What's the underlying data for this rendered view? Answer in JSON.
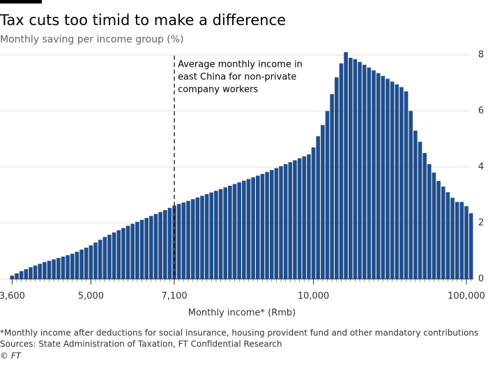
{
  "chart_data": {
    "type": "bar",
    "title": "Tax cuts too timid to make a difference",
    "subtitle": "Monthly saving per income group (%)",
    "x_label": "Monthly income* (Rmb)",
    "annotation": [
      "Average monthly income in",
      "east China for non-private",
      "company workers"
    ],
    "footnote": "*Monthly income after deductions for social insurance, housing provident fund and other mandatory contributions",
    "source": "Sources: State Administration of Taxation, FT Confidential Research",
    "credit": "© FT",
    "color": "#1f4e8c",
    "grid": true,
    "ylim": [
      0,
      8.2
    ],
    "yticks": [
      0,
      2,
      4,
      6,
      8
    ],
    "categories": [
      "3,600",
      null,
      null,
      null,
      null,
      null,
      null,
      null,
      null,
      null,
      null,
      null,
      null,
      null,
      null,
      null,
      null,
      "5,000",
      null,
      null,
      null,
      null,
      null,
      null,
      null,
      null,
      null,
      null,
      null,
      null,
      null,
      null,
      null,
      null,
      null,
      "7,100",
      null,
      null,
      null,
      null,
      null,
      null,
      null,
      null,
      null,
      null,
      null,
      null,
      null,
      null,
      null,
      null,
      null,
      null,
      null,
      null,
      null,
      null,
      null,
      null,
      null,
      null,
      null,
      null,
      null,
      "10,000",
      null,
      null,
      null,
      null,
      null,
      null,
      null,
      null,
      null,
      null,
      null,
      null,
      null,
      null,
      null,
      null,
      null,
      null,
      null,
      null,
      null,
      null,
      null,
      null,
      null,
      null,
      null,
      null,
      null,
      null,
      null,
      null,
      "100,000",
      null
    ],
    "values": [
      0.12,
      0.2,
      0.28,
      0.35,
      0.42,
      0.48,
      0.54,
      0.6,
      0.65,
      0.7,
      0.75,
      0.8,
      0.85,
      0.9,
      0.97,
      1.05,
      1.12,
      1.2,
      1.3,
      1.4,
      1.5,
      1.58,
      1.66,
      1.74,
      1.82,
      1.9,
      1.97,
      2.04,
      2.11,
      2.18,
      2.25,
      2.32,
      2.39,
      2.46,
      2.54,
      2.62,
      2.68,
      2.73,
      2.79,
      2.85,
      2.91,
      2.97,
      3.03,
      3.09,
      3.15,
      3.21,
      3.27,
      3.33,
      3.39,
      3.45,
      3.51,
      3.57,
      3.63,
      3.69,
      3.75,
      3.82,
      3.89,
      3.96,
      4.03,
      4.1,
      4.17,
      4.24,
      4.31,
      4.38,
      4.45,
      4.7,
      5.1,
      5.5,
      6.0,
      6.6,
      7.2,
      7.7,
      8.1,
      7.9,
      7.85,
      7.75,
      7.65,
      7.55,
      7.45,
      7.35,
      7.25,
      7.15,
      7.05,
      6.95,
      6.85,
      6.7,
      6.0,
      5.3,
      4.9,
      4.5,
      4.1,
      3.8,
      3.5,
      3.3,
      3.1,
      2.9,
      2.75,
      2.75,
      2.6,
      2.35
    ]
  }
}
